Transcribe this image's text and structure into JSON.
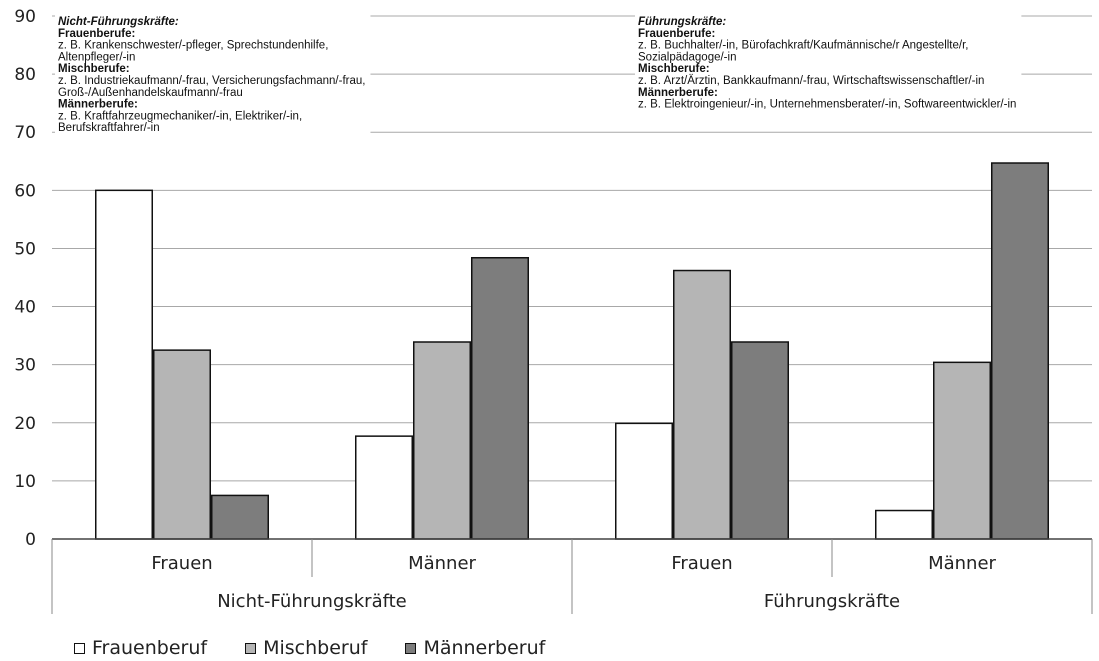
{
  "chart_data": {
    "type": "bar",
    "ylim": [
      0,
      90
    ],
    "yticks": [
      "0",
      "10",
      "20",
      "30",
      "40",
      "50",
      "60",
      "70",
      "80",
      "90"
    ],
    "grid": true,
    "groups": [
      {
        "label": "Nicht-Führungskräfte",
        "categories": [
          "Frauen",
          "Männer"
        ]
      },
      {
        "label": "Führungskräfte",
        "categories": [
          "Frauen",
          "Männer"
        ]
      }
    ],
    "series": [
      {
        "name": "Frauenberuf",
        "color": "#ffffff",
        "values": [
          60.0,
          17.7,
          19.9,
          4.9
        ]
      },
      {
        "name": "Mischberuf",
        "color": "#b5b5b5",
        "values": [
          32.5,
          33.9,
          46.2,
          30.4
        ]
      },
      {
        "name": "Männerberuf",
        "color": "#7d7d7d",
        "values": [
          7.5,
          48.4,
          33.9,
          64.7
        ]
      }
    ],
    "annotations": {
      "left": {
        "title": "Nicht-Führungskräfte:",
        "lines": [
          {
            "text": "Frauenberufe:",
            "bold": true
          },
          {
            "text": "z. B. Krankenschwester/-pfleger, Sprechstundenhilfe,",
            "bold": false
          },
          {
            "text": "Altenpfleger/-in",
            "bold": false
          },
          {
            "text": "Mischberufe:",
            "bold": true
          },
          {
            "text": "z. B. Industriekaufmann/-frau, Versicherungsfachmann/-frau,",
            "bold": false
          },
          {
            "text": "Groß-/Außenhandelskaufmann/-frau",
            "bold": false
          },
          {
            "text": "Männerberufe:",
            "bold": true
          },
          {
            "text": "z. B. Kraftfahrzeugmechaniker/-in, Elektriker/-in,",
            "bold": false
          },
          {
            "text": "Berufskraftfahrer/-in",
            "bold": false
          }
        ]
      },
      "right": {
        "title": "Führungskräfte:",
        "lines": [
          {
            "text": "Frauenberufe:",
            "bold": true
          },
          {
            "text": "z. B. Buchhalter/-in, Bürofachkraft/Kaufmännische/r Angestellte/r,",
            "bold": false
          },
          {
            "text": "Sozialpädagoge/-in",
            "bold": false
          },
          {
            "text": "Mischberufe:",
            "bold": true
          },
          {
            "text": "z. B. Arzt/Ärztin, Bankkaufmann/-frau, Wirtschaftswissenschaftler/-in",
            "bold": false
          },
          {
            "text": "Männerberufe:",
            "bold": true
          },
          {
            "text": "z. B. Elektroingenieur/-in, Unternehmensberater/-in, Softwareentwickler/-in",
            "bold": false
          }
        ]
      }
    },
    "legend_position": "bottom-left"
  }
}
